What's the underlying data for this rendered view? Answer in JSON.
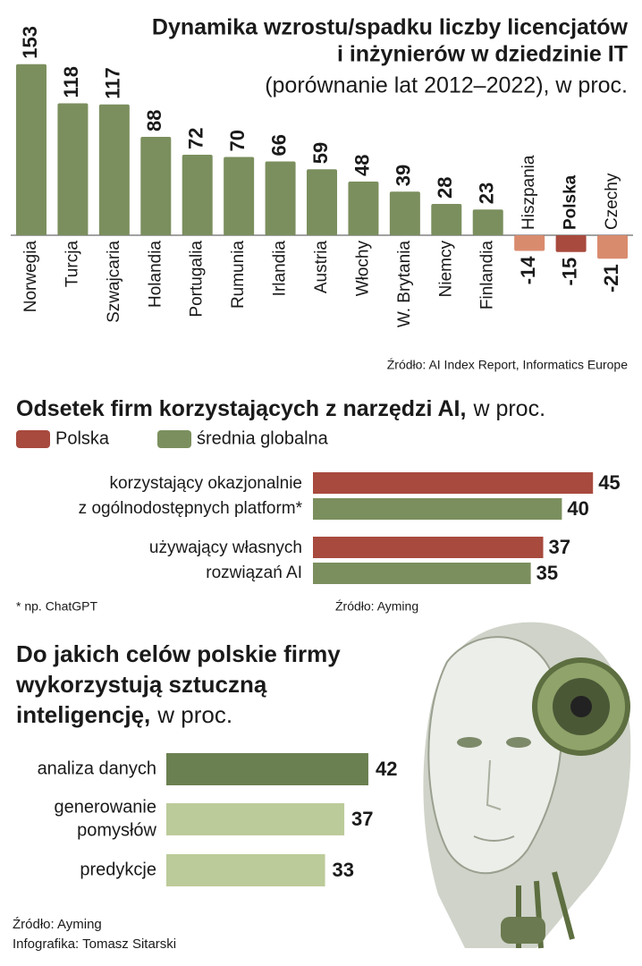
{
  "chart_data": [
    {
      "type": "bar",
      "title": [
        "Dynamika wzrostu/spadku liczby licencjatów",
        "i inżynierów w dziedzinie IT"
      ],
      "subtitle": "(porównanie lat 2012–2022), w proc.",
      "categories": [
        "Norwegia",
        "Turcja",
        "Szwajcaria",
        "Holandia",
        "Portugalia",
        "Rumunia",
        "Irlandia",
        "Austria",
        "Włochy",
        "W. Brytania",
        "Niemcy",
        "Finlandia",
        "Hiszpania",
        "Polska",
        "Czechy"
      ],
      "values": [
        153,
        118,
        117,
        88,
        72,
        70,
        66,
        59,
        48,
        39,
        28,
        23,
        -14,
        -15,
        -21
      ],
      "colors": [
        "#7b8f5e",
        "#7b8f5e",
        "#7b8f5e",
        "#7b8f5e",
        "#7b8f5e",
        "#7b8f5e",
        "#7b8f5e",
        "#7b8f5e",
        "#7b8f5e",
        "#7b8f5e",
        "#7b8f5e",
        "#7b8f5e",
        "#d98b6e",
        "#a84a3e",
        "#d98b6e"
      ],
      "source": "Źródło: AI Index Report, Informatics Europe"
    },
    {
      "type": "hbar",
      "title": "Odsetek firm korzystających z narzędzi AI,",
      "unit": "w proc.",
      "categories": [
        [
          "korzystający okazjonalnie",
          "z ogólnodostępnych platform*"
        ],
        [
          "używający własnych",
          "rozwiązań AI"
        ]
      ],
      "series": [
        {
          "name": "Polska",
          "color": "#a84a3e",
          "values": [
            45,
            37
          ]
        },
        {
          "name": "średnia globalna",
          "color": "#7b8f5e",
          "values": [
            40,
            35
          ]
        }
      ],
      "note": "* np. ChatGPT",
      "source": "Źródło: Ayming"
    },
    {
      "type": "hbar",
      "title": [
        "Do jakich celów polskie firmy",
        "wykorzystują sztuczną",
        "inteligencję,"
      ],
      "unit": "w proc.",
      "categories": [
        [
          "analiza danych"
        ],
        [
          "generowanie",
          "pomysłów"
        ],
        [
          "predykcje"
        ]
      ],
      "values": [
        42,
        37,
        33
      ],
      "colors": [
        "#6b8050",
        "#bccb9a",
        "#bccb9a"
      ],
      "source": "Źródło: Ayming",
      "credit": "Infografika: Tomasz Sitarski"
    }
  ]
}
